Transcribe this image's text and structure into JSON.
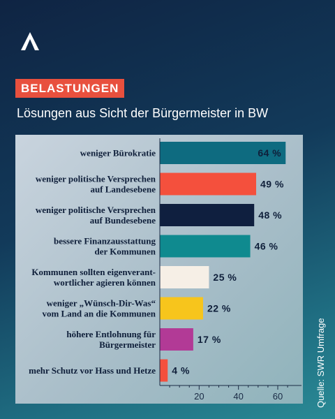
{
  "header": {
    "logo_icon": "brand-a-logo-icon",
    "badge": "BELASTUNGEN",
    "subtitle": "Lösungen aus Sicht der Bürgermeister in BW",
    "source": "Quelle: SWR Umfrage"
  },
  "chart_data": {
    "type": "bar",
    "orientation": "horizontal",
    "categories": [
      [
        "weniger Bürokratie"
      ],
      [
        "weniger politische Versprechen",
        "auf Landesebene"
      ],
      [
        "weniger politische Versprechen",
        "auf Bundesebene"
      ],
      [
        "bessere Finanzausstattung",
        "der Kommunen"
      ],
      [
        "Kommunen sollten eigenverant-",
        "wortlicher agieren können"
      ],
      [
        "weniger „Wünsch-Dir-Was“",
        "vom Land an die Kommunen"
      ],
      [
        "höhere Entlohnung für",
        "Bürgermeister"
      ],
      [
        "mehr Schutz vor Hass und Hetze"
      ]
    ],
    "values": [
      64,
      49,
      48,
      46,
      25,
      22,
      17,
      4
    ],
    "value_labels": [
      "64 %",
      "49 %",
      "48 %",
      "46 %",
      "25 %",
      "22 %",
      "17 %",
      "4 %"
    ],
    "bar_colors": [
      "#0e6b80",
      "#f4503d",
      "#0f1f3f",
      "#0f8a8f",
      "#f6efe6",
      "#f7c51c",
      "#b23a96",
      "#f4503d"
    ],
    "xticks": [
      20,
      40,
      60
    ],
    "xlim": [
      0,
      70
    ],
    "grid": false
  }
}
